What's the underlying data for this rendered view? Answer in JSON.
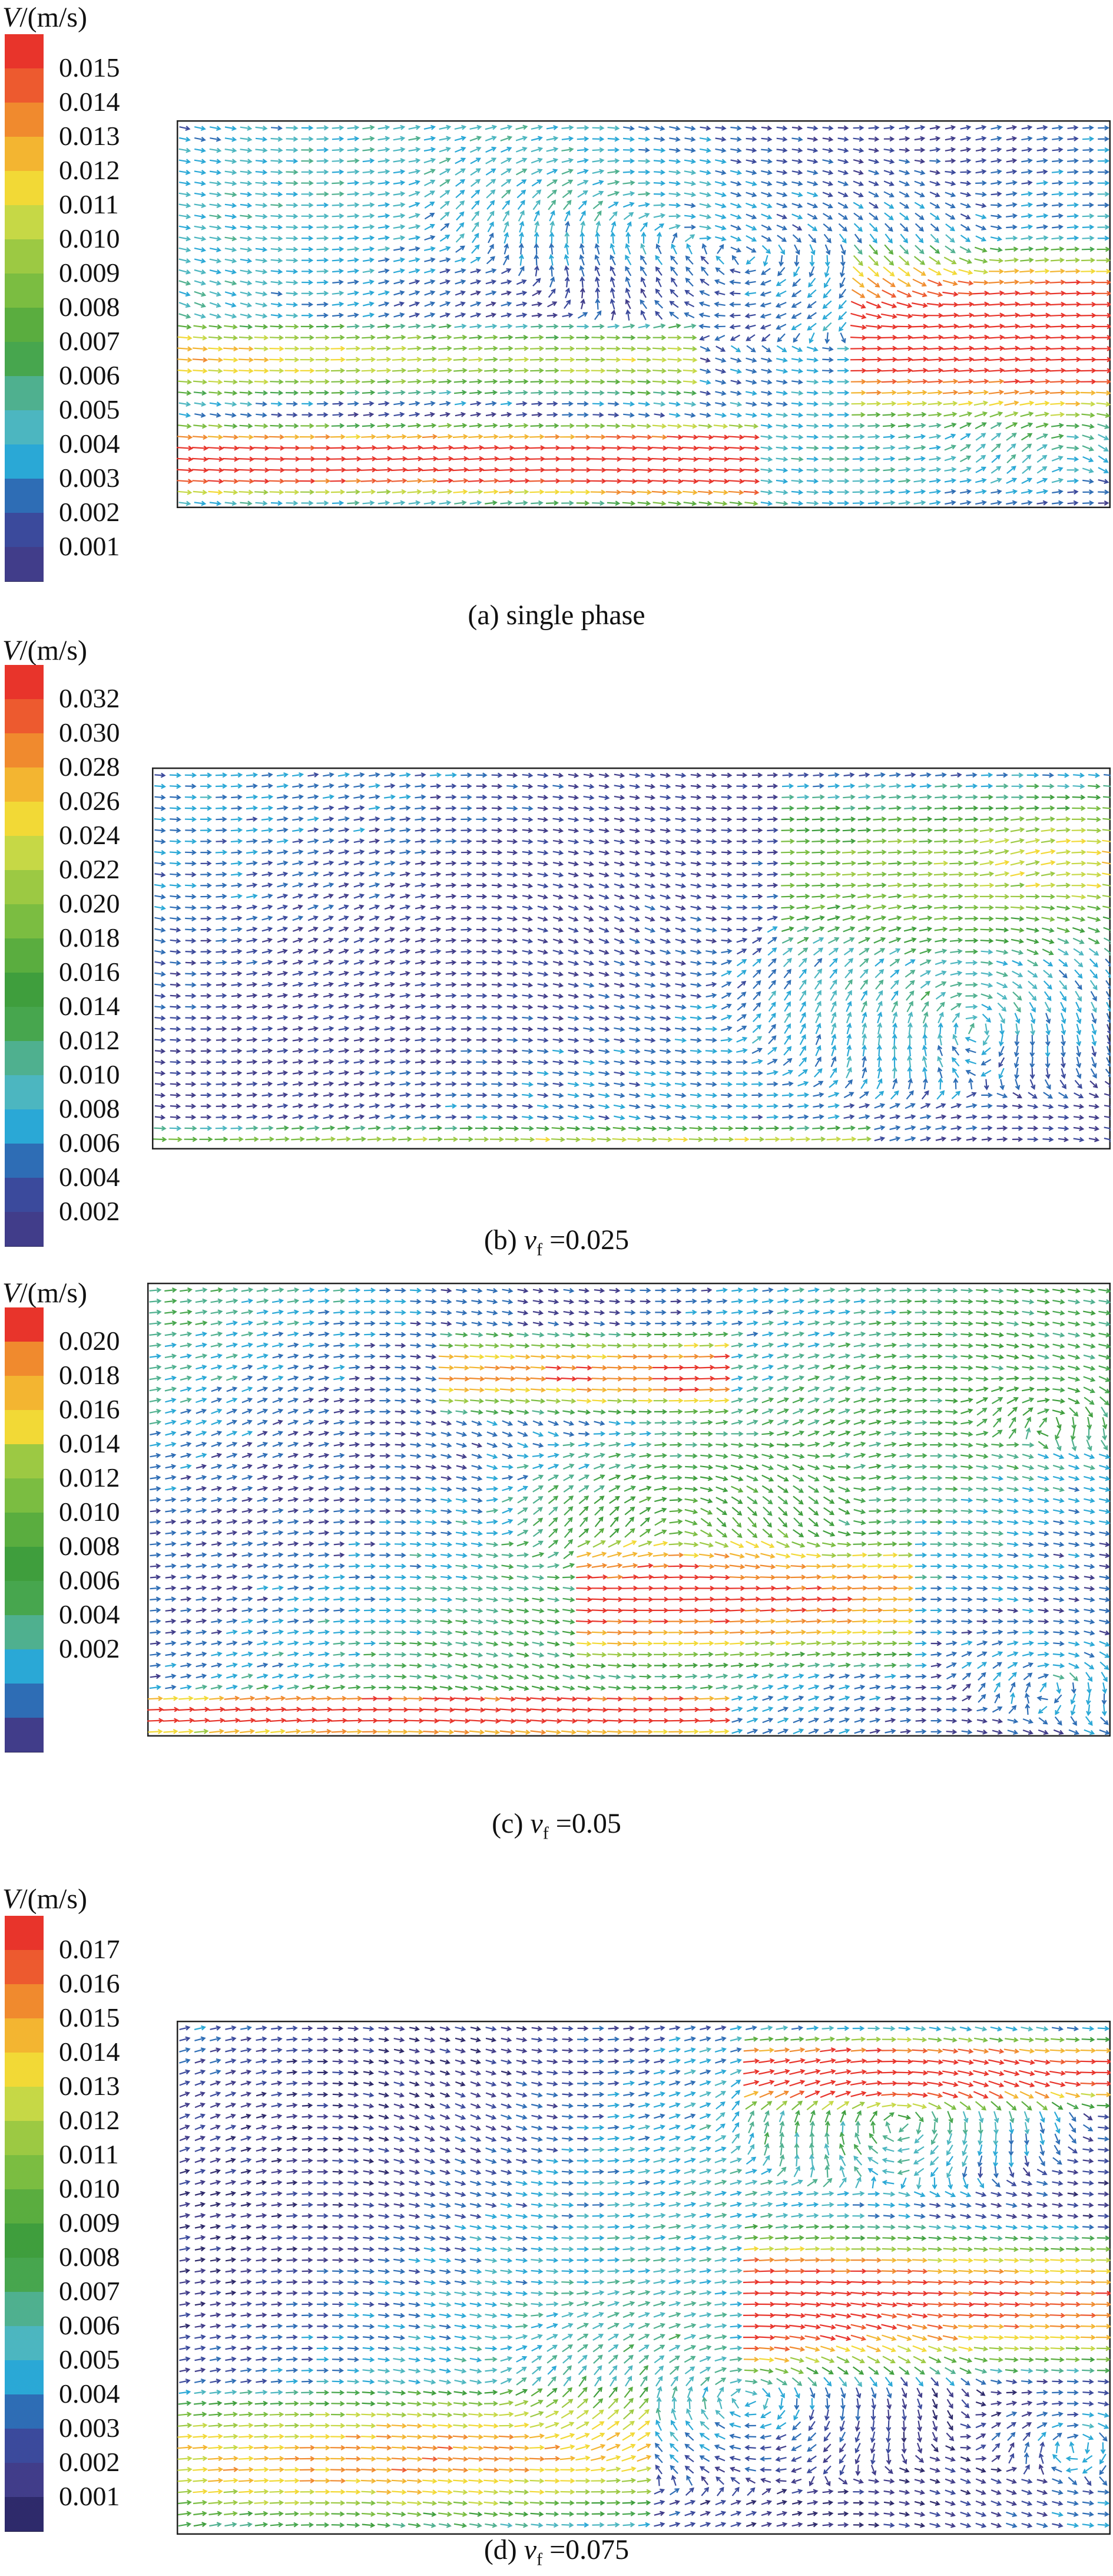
{
  "unit_label": {
    "symbol": "V",
    "unit": "/(m/s)"
  },
  "chart_data": [
    {
      "type": "vector_field",
      "caption": "(a) single phase",
      "legend_ticks": [
        "0.015",
        "0.014",
        "0.013",
        "0.012",
        "0.011",
        "0.010",
        "0.009",
        "0.008",
        "0.007",
        "0.006",
        "0.005",
        "0.004",
        "0.003",
        "0.002",
        "0.001"
      ],
      "legend_colors": [
        "#e8342b",
        "#ed5a2f",
        "#f08a2e",
        "#f3b531",
        "#f2d936",
        "#c6d846",
        "#9cc943",
        "#7bbd41",
        "#5aad3f",
        "#47a64e",
        "#4fb08f",
        "#4cb6c0",
        "#2aa8d6",
        "#2e6db5",
        "#3b4a9c",
        "#413d8a"
      ],
      "value_range": [
        0.001,
        0.015
      ]
    },
    {
      "type": "vector_field",
      "caption_prefix": "(b) ",
      "caption_var": "v",
      "caption_sub": "f",
      "caption_value": " =0.025",
      "legend_ticks": [
        "0.032",
        "0.030",
        "0.028",
        "0.026",
        "0.024",
        "0.022",
        "0.020",
        "0.018",
        "0.016",
        "0.014",
        "0.012",
        "0.010",
        "0.008",
        "0.006",
        "0.004",
        "0.002"
      ],
      "legend_colors": [
        "#e8342b",
        "#ed5a2f",
        "#f08a2e",
        "#f3b531",
        "#f2d936",
        "#c6d846",
        "#9cc943",
        "#7bbd41",
        "#5aad3f",
        "#3f9e3d",
        "#47a64e",
        "#4fb08f",
        "#4cb6c0",
        "#2aa8d6",
        "#2e6db5",
        "#3b4a9c",
        "#413d8a"
      ],
      "value_range": [
        0.002,
        0.032
      ]
    },
    {
      "type": "vector_field",
      "caption_prefix": "(c) ",
      "caption_var": "v",
      "caption_sub": "f",
      "caption_value": " =0.05",
      "legend_ticks": [
        "0.020",
        "0.018",
        "0.016",
        "0.014",
        "0.012",
        "0.010",
        "0.008",
        "0.006",
        "0.004",
        "0.002"
      ],
      "legend_colors": [
        "#e8342b",
        "#f08a2e",
        "#f3b531",
        "#f2d936",
        "#9cc943",
        "#7bbd41",
        "#5aad3f",
        "#3f9e3d",
        "#47a64e",
        "#4fb08f",
        "#2aa8d6",
        "#2e6db5",
        "#413d8a"
      ],
      "value_range": [
        0.002,
        0.02
      ]
    },
    {
      "type": "vector_field",
      "caption_prefix": "(d) ",
      "caption_var": "v",
      "caption_sub": "f",
      "caption_value": " =0.075",
      "legend_ticks": [
        "0.017",
        "0.016",
        "0.015",
        "0.014",
        "0.013",
        "0.012",
        "0.011",
        "0.010",
        "0.009",
        "0.008",
        "0.007",
        "0.006",
        "0.005",
        "0.004",
        "0.003",
        "0.002",
        "0.001"
      ],
      "legend_colors": [
        "#e8342b",
        "#ed5a2f",
        "#f08a2e",
        "#f3b531",
        "#f2d936",
        "#c6d846",
        "#9cc943",
        "#7bbd41",
        "#5aad3f",
        "#3f9e3d",
        "#47a64e",
        "#4fb08f",
        "#4cb6c0",
        "#2aa8d6",
        "#2e6db5",
        "#3b4a9c",
        "#413d8a",
        "#2e2a6b"
      ],
      "value_range": [
        0.001,
        0.017
      ]
    }
  ]
}
